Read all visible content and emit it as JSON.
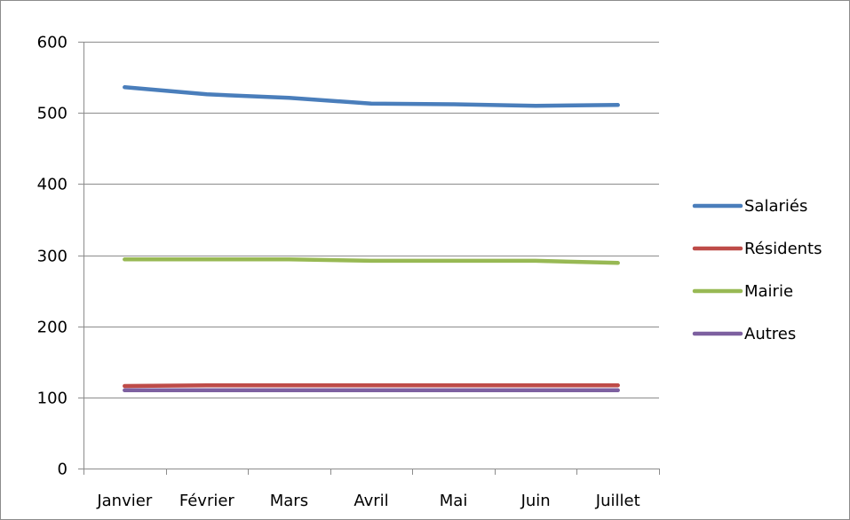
{
  "chart_data": {
    "type": "line",
    "title": "",
    "xlabel": "",
    "ylabel": "",
    "categories": [
      "Janvier",
      "Février",
      "Mars",
      "Avril",
      "Mai",
      "Juin",
      "Juillet"
    ],
    "ylim": [
      0,
      600
    ],
    "yticks": [
      0,
      100,
      200,
      300,
      400,
      500,
      600
    ],
    "grid": "horizontal",
    "legend_position": "right",
    "series": [
      {
        "name": "Salariés",
        "color": "#4a7ebb",
        "values": [
          536,
          526,
          521,
          513,
          512,
          510,
          511
        ]
      },
      {
        "name": "Résidents",
        "color": "#be4b48",
        "values": [
          116,
          117,
          117,
          117,
          117,
          117,
          117
        ]
      },
      {
        "name": "Mairie",
        "color": "#98b954",
        "values": [
          294,
          294,
          294,
          292,
          292,
          292,
          289
        ]
      },
      {
        "name": "Autres",
        "color": "#7d60a0",
        "values": [
          110,
          110,
          110,
          110,
          110,
          110,
          110
        ]
      }
    ]
  }
}
